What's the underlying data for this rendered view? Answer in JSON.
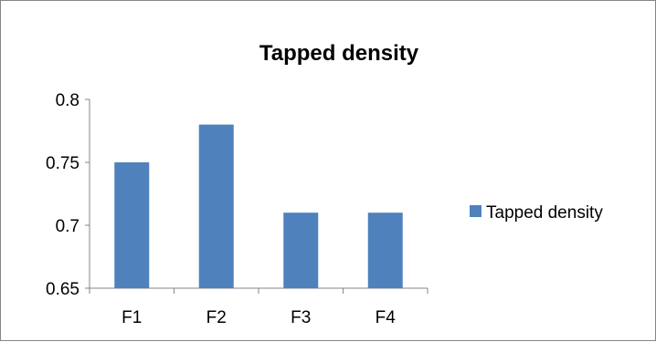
{
  "chart_data": {
    "type": "bar",
    "title": "Tapped density",
    "xlabel": "",
    "ylabel": "",
    "categories": [
      "F1",
      "F2",
      "F3",
      "F4"
    ],
    "series": [
      {
        "name": "Tapped density",
        "values": [
          0.75,
          0.78,
          0.71,
          0.71
        ]
      }
    ],
    "ylim": [
      0.65,
      0.8
    ],
    "yticks": [
      "0.65",
      "0.7",
      "0.75",
      "0.8"
    ],
    "grid": false,
    "legend_position": "right",
    "colors": {
      "bar": "#4f81bd",
      "axis": "#868686",
      "frame": "#868686"
    }
  }
}
